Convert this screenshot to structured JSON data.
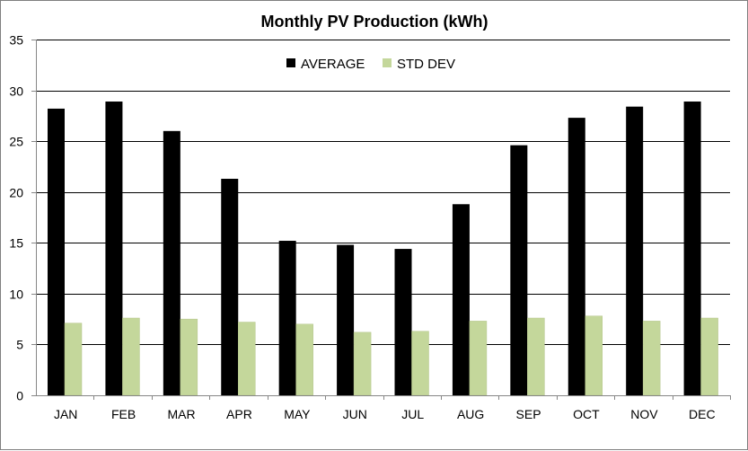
{
  "chart_data": {
    "type": "bar",
    "title": "Monthly PV Production  (kWh)",
    "xlabel": "",
    "ylabel": "",
    "categories": [
      "JAN",
      "FEB",
      "MAR",
      "APR",
      "MAY",
      "JUN",
      "JUL",
      "AUG",
      "SEP",
      "OCT",
      "NOV",
      "DEC"
    ],
    "series": [
      {
        "name": "AVERAGE",
        "color": "#000000",
        "values": [
          28.2,
          28.9,
          26.0,
          21.3,
          15.2,
          14.8,
          14.4,
          18.8,
          24.6,
          27.3,
          28.4,
          28.9
        ]
      },
      {
        "name": "STD DEV",
        "color": "#c4d79b",
        "values": [
          7.1,
          7.6,
          7.5,
          7.2,
          7.0,
          6.2,
          6.3,
          7.3,
          7.6,
          7.8,
          7.3,
          7.6
        ]
      }
    ],
    "ylim": [
      0,
      35
    ],
    "yticks": [
      0,
      5,
      10,
      15,
      20,
      25,
      30,
      35
    ],
    "grid": true,
    "legend": "top-center"
  }
}
